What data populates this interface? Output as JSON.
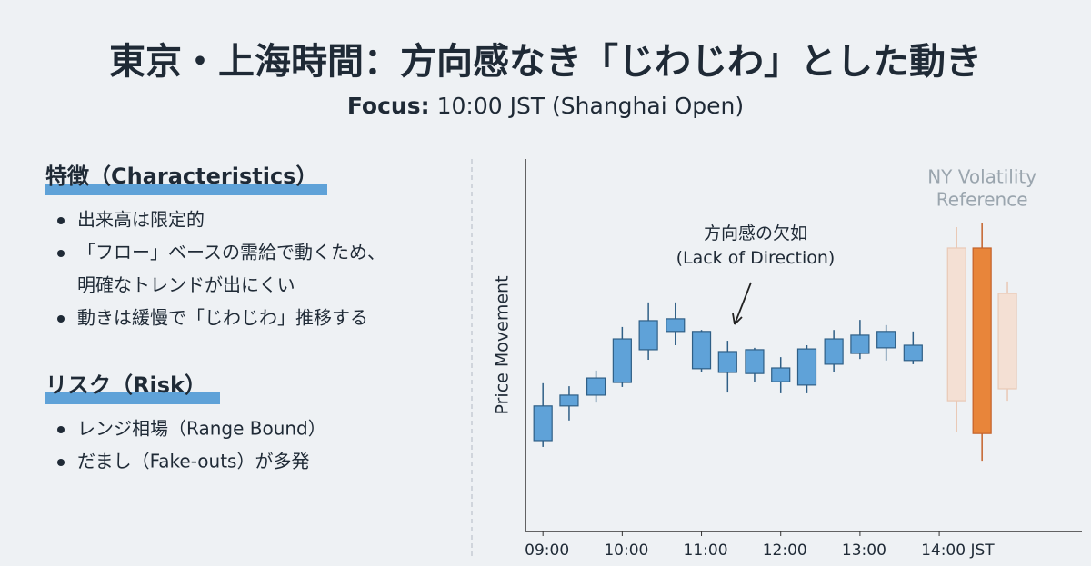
{
  "header": {
    "title": "東京・上海時間：方向感なき「じわじわ」とした動き",
    "focus_label": "Focus:",
    "focus_text": "10:00 JST (Shanghai Open)"
  },
  "sections": [
    {
      "heading": "特徴（Characteristics）",
      "items": [
        [
          "出来高は限定的"
        ],
        [
          "「フロー」ベースの需給で動くため、",
          "明確なトレンドが出にくい"
        ],
        [
          "動きは緩慢で「じわじわ」推移する"
        ]
      ]
    },
    {
      "heading": "リスク（Risk）",
      "items": [
        [
          "レンジ相場（Range Bound）"
        ],
        [
          "だまし（Fake-outs）が多発"
        ]
      ]
    }
  ],
  "chart_data": {
    "type": "candlestick",
    "ylabel": "Price Movement",
    "x": [
      9,
      9.33,
      9.67,
      10,
      10.33,
      10.67,
      11,
      11.33,
      11.67,
      12,
      12.33,
      12.67,
      13,
      13.33,
      13.67
    ],
    "open": [
      24.4,
      33.7,
      36.6,
      40.0,
      48.8,
      53.7,
      53.7,
      48.3,
      42.4,
      43.9,
      39.3,
      44.9,
      47.8,
      49.3,
      50.0
    ],
    "high": [
      39.8,
      39.0,
      43.2,
      54.9,
      61.5,
      61.5,
      54.1,
      51.2,
      49.3,
      46.8,
      50.0,
      54.1,
      56.8,
      55.4,
      53.7
    ],
    "low": [
      22.7,
      29.8,
      34.6,
      38.8,
      46.1,
      50.0,
      42.7,
      37.3,
      40.0,
      37.1,
      37.1,
      42.7,
      46.3,
      45.9,
      44.9
    ],
    "close": [
      33.7,
      36.6,
      41.2,
      51.7,
      56.6,
      57.1,
      43.7,
      42.7,
      48.8,
      40.2,
      49.0,
      51.7,
      52.7,
      53.7,
      45.9
    ],
    "color": "#5fa2d8",
    "edge_color": "#2f5f86",
    "reference": {
      "label": [
        "NY Volatility",
        "Reference"
      ],
      "x": [
        14.22,
        14.54,
        14.86
      ],
      "open": [
        35.1,
        76.1,
        63.9
      ],
      "high": [
        81.7,
        82.9,
        67.1
      ],
      "low": [
        26.8,
        19.0,
        35.1
      ],
      "close": [
        76.1,
        26.3,
        38.3
      ],
      "colors": [
        "#f4e0d4",
        "#e8853a",
        "#f4e0d4"
      ],
      "edge_colors": [
        "#e9c9b6",
        "#c4622a",
        "#e9c9b6"
      ]
    },
    "annotation": {
      "text": [
        "方向感の欠如",
        "(Lack of Direction)"
      ],
      "x": 11.2,
      "y": 77
    },
    "xlim": [
      8.78,
      15.8
    ],
    "ylim": [
      0,
      100
    ],
    "xticks": [
      {
        "value": 9,
        "label": "09:00"
      },
      {
        "value": 10,
        "label": "10:00"
      },
      {
        "value": 11,
        "label": "11:00"
      },
      {
        "value": 12,
        "label": "12:00"
      },
      {
        "value": 13,
        "label": "13:00"
      },
      {
        "value": 14,
        "label": "14:00 JST"
      }
    ]
  }
}
